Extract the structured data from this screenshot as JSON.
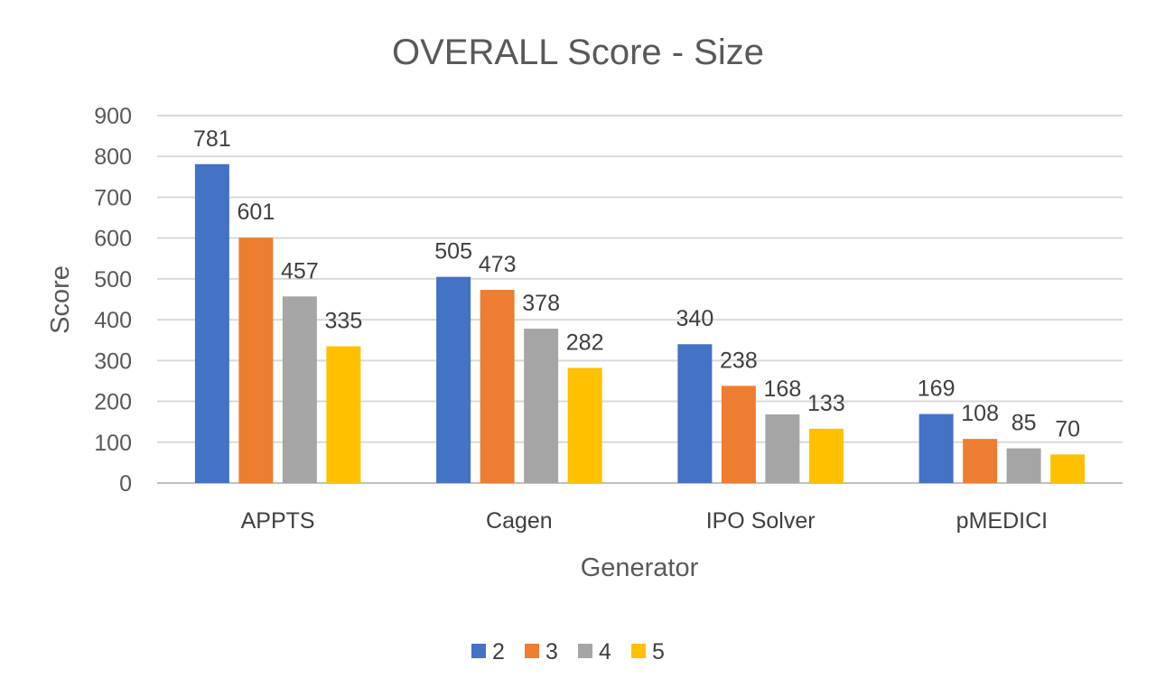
{
  "chart_data": {
    "type": "bar",
    "title": "OVERALL Score - Size",
    "xlabel": "Generator",
    "ylabel": "Score",
    "ylim": [
      0,
      900
    ],
    "yticks": [
      0,
      100,
      200,
      300,
      400,
      500,
      600,
      700,
      800,
      900
    ],
    "categories": [
      "APPTS",
      "Cagen",
      "IPO Solver",
      "pMEDICI"
    ],
    "series": [
      {
        "name": "2",
        "color": "#4472c4",
        "values": [
          781,
          505,
          340,
          169
        ]
      },
      {
        "name": "3",
        "color": "#ed7d31",
        "values": [
          601,
          473,
          238,
          108
        ]
      },
      {
        "name": "4",
        "color": "#a5a5a5",
        "values": [
          457,
          378,
          168,
          85
        ]
      },
      {
        "name": "5",
        "color": "#ffc000",
        "values": [
          335,
          282,
          133,
          70
        ]
      }
    ],
    "grid": true,
    "legend": "bottom",
    "data_labels": true
  }
}
